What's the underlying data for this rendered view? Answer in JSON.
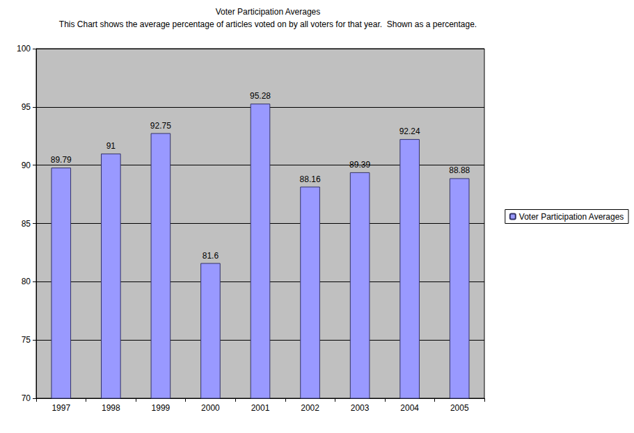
{
  "chart_data": {
    "type": "bar",
    "title": "Voter Participation Averages",
    "subtitle": "This Chart shows the average percentage of articles voted on by all voters for that year.  Shown as a percentage.",
    "categories": [
      "1997",
      "1998",
      "1999",
      "2000",
      "2001",
      "2002",
      "2003",
      "2004",
      "2005"
    ],
    "series": [
      {
        "name": "Voter Participation Averages",
        "color": "#9999ff",
        "values": [
          89.79,
          91,
          92.75,
          81.6,
          95.28,
          88.16,
          89.39,
          92.24,
          88.88
        ]
      }
    ],
    "ylim": [
      70,
      100
    ],
    "yticks": [
      70,
      75,
      80,
      85,
      90,
      95,
      100
    ],
    "grid": true,
    "legend": "right",
    "data_labels": true
  }
}
